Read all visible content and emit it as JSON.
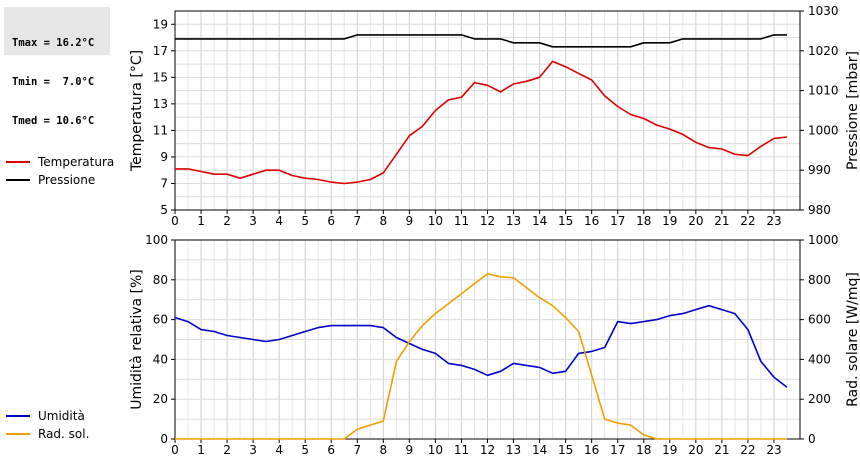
{
  "stats": {
    "tmax": "Tmax = 16.2°C",
    "tmin": "Tmin =  7.0°C",
    "tmed": "Tmed = 10.6°C"
  },
  "chart_data": [
    {
      "type": "line",
      "title": "",
      "xlabel": "",
      "ylabel_left": "Temperatura [°C]",
      "ylabel_right": "Pressione [mbar]",
      "xlim": [
        0,
        24
      ],
      "x_ticks": [
        0,
        1,
        2,
        3,
        4,
        5,
        6,
        7,
        8,
        9,
        10,
        11,
        12,
        13,
        14,
        15,
        16,
        17,
        18,
        19,
        20,
        21,
        22,
        23
      ],
      "y_left_lim": [
        5,
        20
      ],
      "y_left_ticks": [
        5,
        7,
        9,
        11,
        13,
        15,
        17,
        19
      ],
      "y_right_lim": [
        980,
        1030
      ],
      "y_right_ticks": [
        980,
        990,
        1000,
        1010,
        1020,
        1030
      ],
      "grid": true,
      "legend_placement": "left",
      "series": [
        {
          "name": "Temperatura",
          "axis": "left",
          "color": "#dd0000",
          "x": [
            0,
            0.5,
            1,
            1.5,
            2,
            2.5,
            3,
            3.5,
            4,
            4.5,
            5,
            5.5,
            6,
            6.5,
            7,
            7.5,
            8,
            8.5,
            9,
            9.5,
            10,
            10.5,
            11,
            11.5,
            12,
            12.5,
            13,
            13.5,
            14,
            14.5,
            15,
            15.5,
            16,
            16.5,
            17,
            17.5,
            18,
            18.5,
            19,
            19.5,
            20,
            20.5,
            21,
            21.5,
            22,
            22.5,
            23,
            23.5
          ],
          "y": [
            8.1,
            8.1,
            7.9,
            7.7,
            7.7,
            7.4,
            7.7,
            8.0,
            8.0,
            7.6,
            7.4,
            7.3,
            7.1,
            7.0,
            7.1,
            7.3,
            7.8,
            9.2,
            10.6,
            11.3,
            12.5,
            13.3,
            13.5,
            14.6,
            14.4,
            13.9,
            14.5,
            14.7,
            15.0,
            16.2,
            15.8,
            15.3,
            14.8,
            13.6,
            12.8,
            12.2,
            11.9,
            11.4,
            11.1,
            10.7,
            10.1,
            9.7,
            9.6,
            9.2,
            9.1,
            9.8,
            10.4,
            10.5
          ]
        },
        {
          "name": "Pressione",
          "axis": "right",
          "color": "#000000",
          "x": [
            0,
            0.5,
            1,
            1.5,
            2,
            2.5,
            3,
            3.5,
            4,
            4.5,
            5,
            5.5,
            6,
            6.5,
            7,
            7.5,
            8,
            8.5,
            9,
            9.5,
            10,
            10.5,
            11,
            11.5,
            12,
            12.5,
            13,
            13.5,
            14,
            14.5,
            15,
            15.5,
            16,
            16.5,
            17,
            17.5,
            18,
            18.5,
            19,
            19.5,
            20,
            20.5,
            21,
            21.5,
            22,
            22.5,
            23,
            23.5
          ],
          "y": [
            1023,
            1023,
            1023,
            1023,
            1023,
            1023,
            1023,
            1023,
            1023,
            1023,
            1023,
            1023,
            1023,
            1023,
            1024,
            1024,
            1024,
            1024,
            1024,
            1024,
            1024,
            1024,
            1024,
            1023,
            1023,
            1023,
            1022,
            1022,
            1022,
            1021,
            1021,
            1021,
            1021,
            1021,
            1021,
            1021,
            1022,
            1022,
            1022,
            1023,
            1023,
            1023,
            1023,
            1023,
            1023,
            1023,
            1024,
            1024
          ]
        }
      ]
    },
    {
      "type": "line",
      "title": "",
      "xlabel": "",
      "ylabel_left": "Umidità relativa [%]",
      "ylabel_right": "Rad. solare [W/mq]",
      "xlim": [
        0,
        24
      ],
      "x_ticks": [
        0,
        1,
        2,
        3,
        4,
        5,
        6,
        7,
        8,
        9,
        10,
        11,
        12,
        13,
        14,
        15,
        16,
        17,
        18,
        19,
        20,
        21,
        22,
        23
      ],
      "y_left_lim": [
        0,
        100
      ],
      "y_left_ticks": [
        0,
        20,
        40,
        60,
        80,
        100
      ],
      "y_right_lim": [
        0,
        1000
      ],
      "y_right_ticks": [
        0,
        200,
        400,
        600,
        800,
        1000
      ],
      "grid": true,
      "legend_placement": "left",
      "series": [
        {
          "name": "Umidità",
          "axis": "left",
          "color": "#0000cc",
          "x": [
            0,
            0.5,
            1,
            1.5,
            2,
            2.5,
            3,
            3.5,
            4,
            4.5,
            5,
            5.5,
            6,
            6.5,
            7,
            7.5,
            8,
            8.5,
            9,
            9.5,
            10,
            10.5,
            11,
            11.5,
            12,
            12.5,
            13,
            13.5,
            14,
            14.5,
            15,
            15.5,
            16,
            16.5,
            17,
            17.5,
            18,
            18.5,
            19,
            19.5,
            20,
            20.5,
            21,
            21.5,
            22,
            22.5,
            23,
            23.5
          ],
          "y": [
            61,
            59,
            55,
            54,
            52,
            51,
            50,
            49,
            50,
            52,
            54,
            56,
            57,
            57,
            57,
            57,
            56,
            51,
            48,
            45,
            43,
            38,
            37,
            35,
            32,
            34,
            38,
            37,
            36,
            33,
            34,
            43,
            44,
            46,
            59,
            58,
            59,
            60,
            62,
            63,
            65,
            67,
            65,
            63,
            55,
            39,
            31,
            26
          ]
        },
        {
          "name": "Rad. sol.",
          "axis": "right",
          "color": "#f0a000",
          "x": [
            0,
            0.5,
            1,
            1.5,
            2,
            2.5,
            3,
            3.5,
            4,
            4.5,
            5,
            5.5,
            6,
            6.5,
            7,
            7.5,
            8,
            8.5,
            9,
            9.5,
            10,
            10.5,
            11,
            11.5,
            12,
            12.5,
            13,
            13.5,
            14,
            14.5,
            15,
            15.5,
            16,
            16.5,
            17,
            17.5,
            18,
            18.5,
            19,
            19.5,
            20,
            20.5,
            21,
            21.5,
            22,
            22.5,
            23,
            23.5
          ],
          "y": [
            0,
            0,
            0,
            0,
            0,
            0,
            0,
            0,
            0,
            0,
            0,
            0,
            0,
            0,
            50,
            70,
            90,
            390,
            490,
            570,
            630,
            680,
            730,
            780,
            830,
            815,
            810,
            760,
            710,
            670,
            610,
            540,
            320,
            100,
            80,
            70,
            20,
            0,
            0,
            0,
            0,
            0,
            0,
            0,
            0,
            0,
            0,
            0
          ]
        }
      ]
    }
  ]
}
